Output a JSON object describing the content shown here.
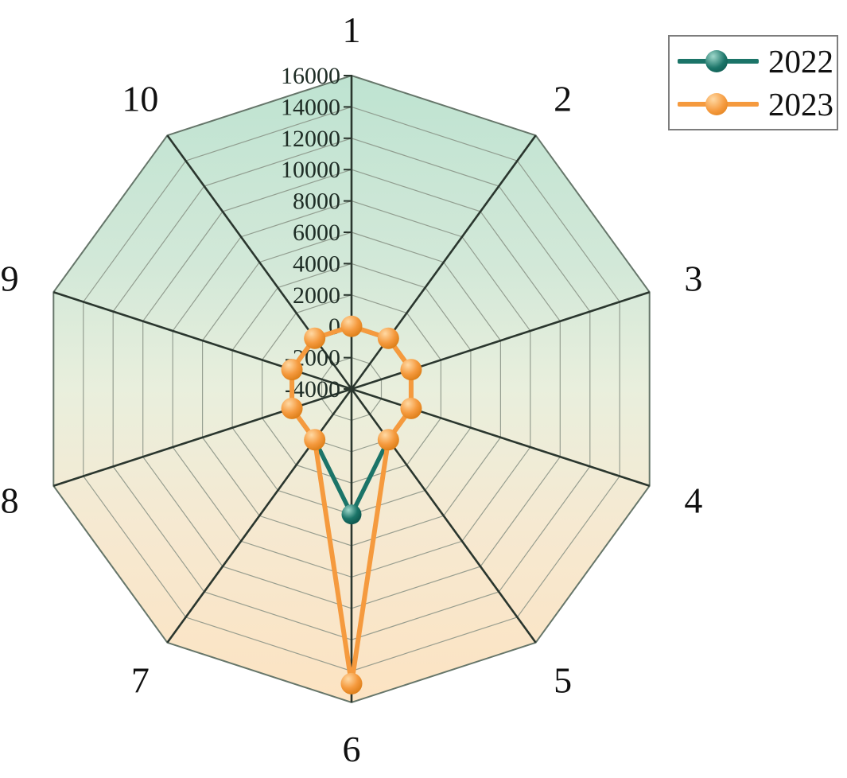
{
  "legend": {
    "items": [
      {
        "label": "2022",
        "color": "#1b7468",
        "ball_light": "#9fd8cb",
        "ball_dark": "#0b5048"
      },
      {
        "label": "2023",
        "color": "#f59a3e",
        "ball_light": "#ffd9a4",
        "ball_dark": "#d97a12"
      }
    ]
  },
  "chart_data": {
    "type": "line",
    "subtype": "radar-polar-decagon",
    "title": "",
    "categories": [
      "1",
      "2",
      "3",
      "4",
      "5",
      "6",
      "7",
      "8",
      "9",
      "10"
    ],
    "series": [
      {
        "name": "2022",
        "color": "#1b7468",
        "values": [
          0,
          0,
          0,
          0,
          0,
          4000,
          0,
          0,
          0,
          0
        ]
      },
      {
        "name": "2023",
        "color": "#f59a3e",
        "values": [
          0,
          0,
          0,
          0,
          0,
          14800,
          0,
          0,
          0,
          0
        ]
      }
    ],
    "r_axis": {
      "min": -4000,
      "max": 16000,
      "step": 2000,
      "tick_labels": [
        "-4000",
        "-2000",
        "0",
        "2000",
        "4000",
        "6000",
        "8000",
        "10000",
        "12000",
        "14000",
        "16000"
      ]
    },
    "grid": true,
    "legend_position": "top-right",
    "styles": {
      "fill_gradient": [
        "#bee3d1",
        "#d2e8d8",
        "#e9efdd",
        "#f6e9d1",
        "#fce3c2"
      ],
      "grid_color": "#879084",
      "spoke_color": "#2a362e",
      "outer_edge_color": "#66766a",
      "tick_text_color": "#1f2d26",
      "category_text_color": "#101010"
    }
  }
}
